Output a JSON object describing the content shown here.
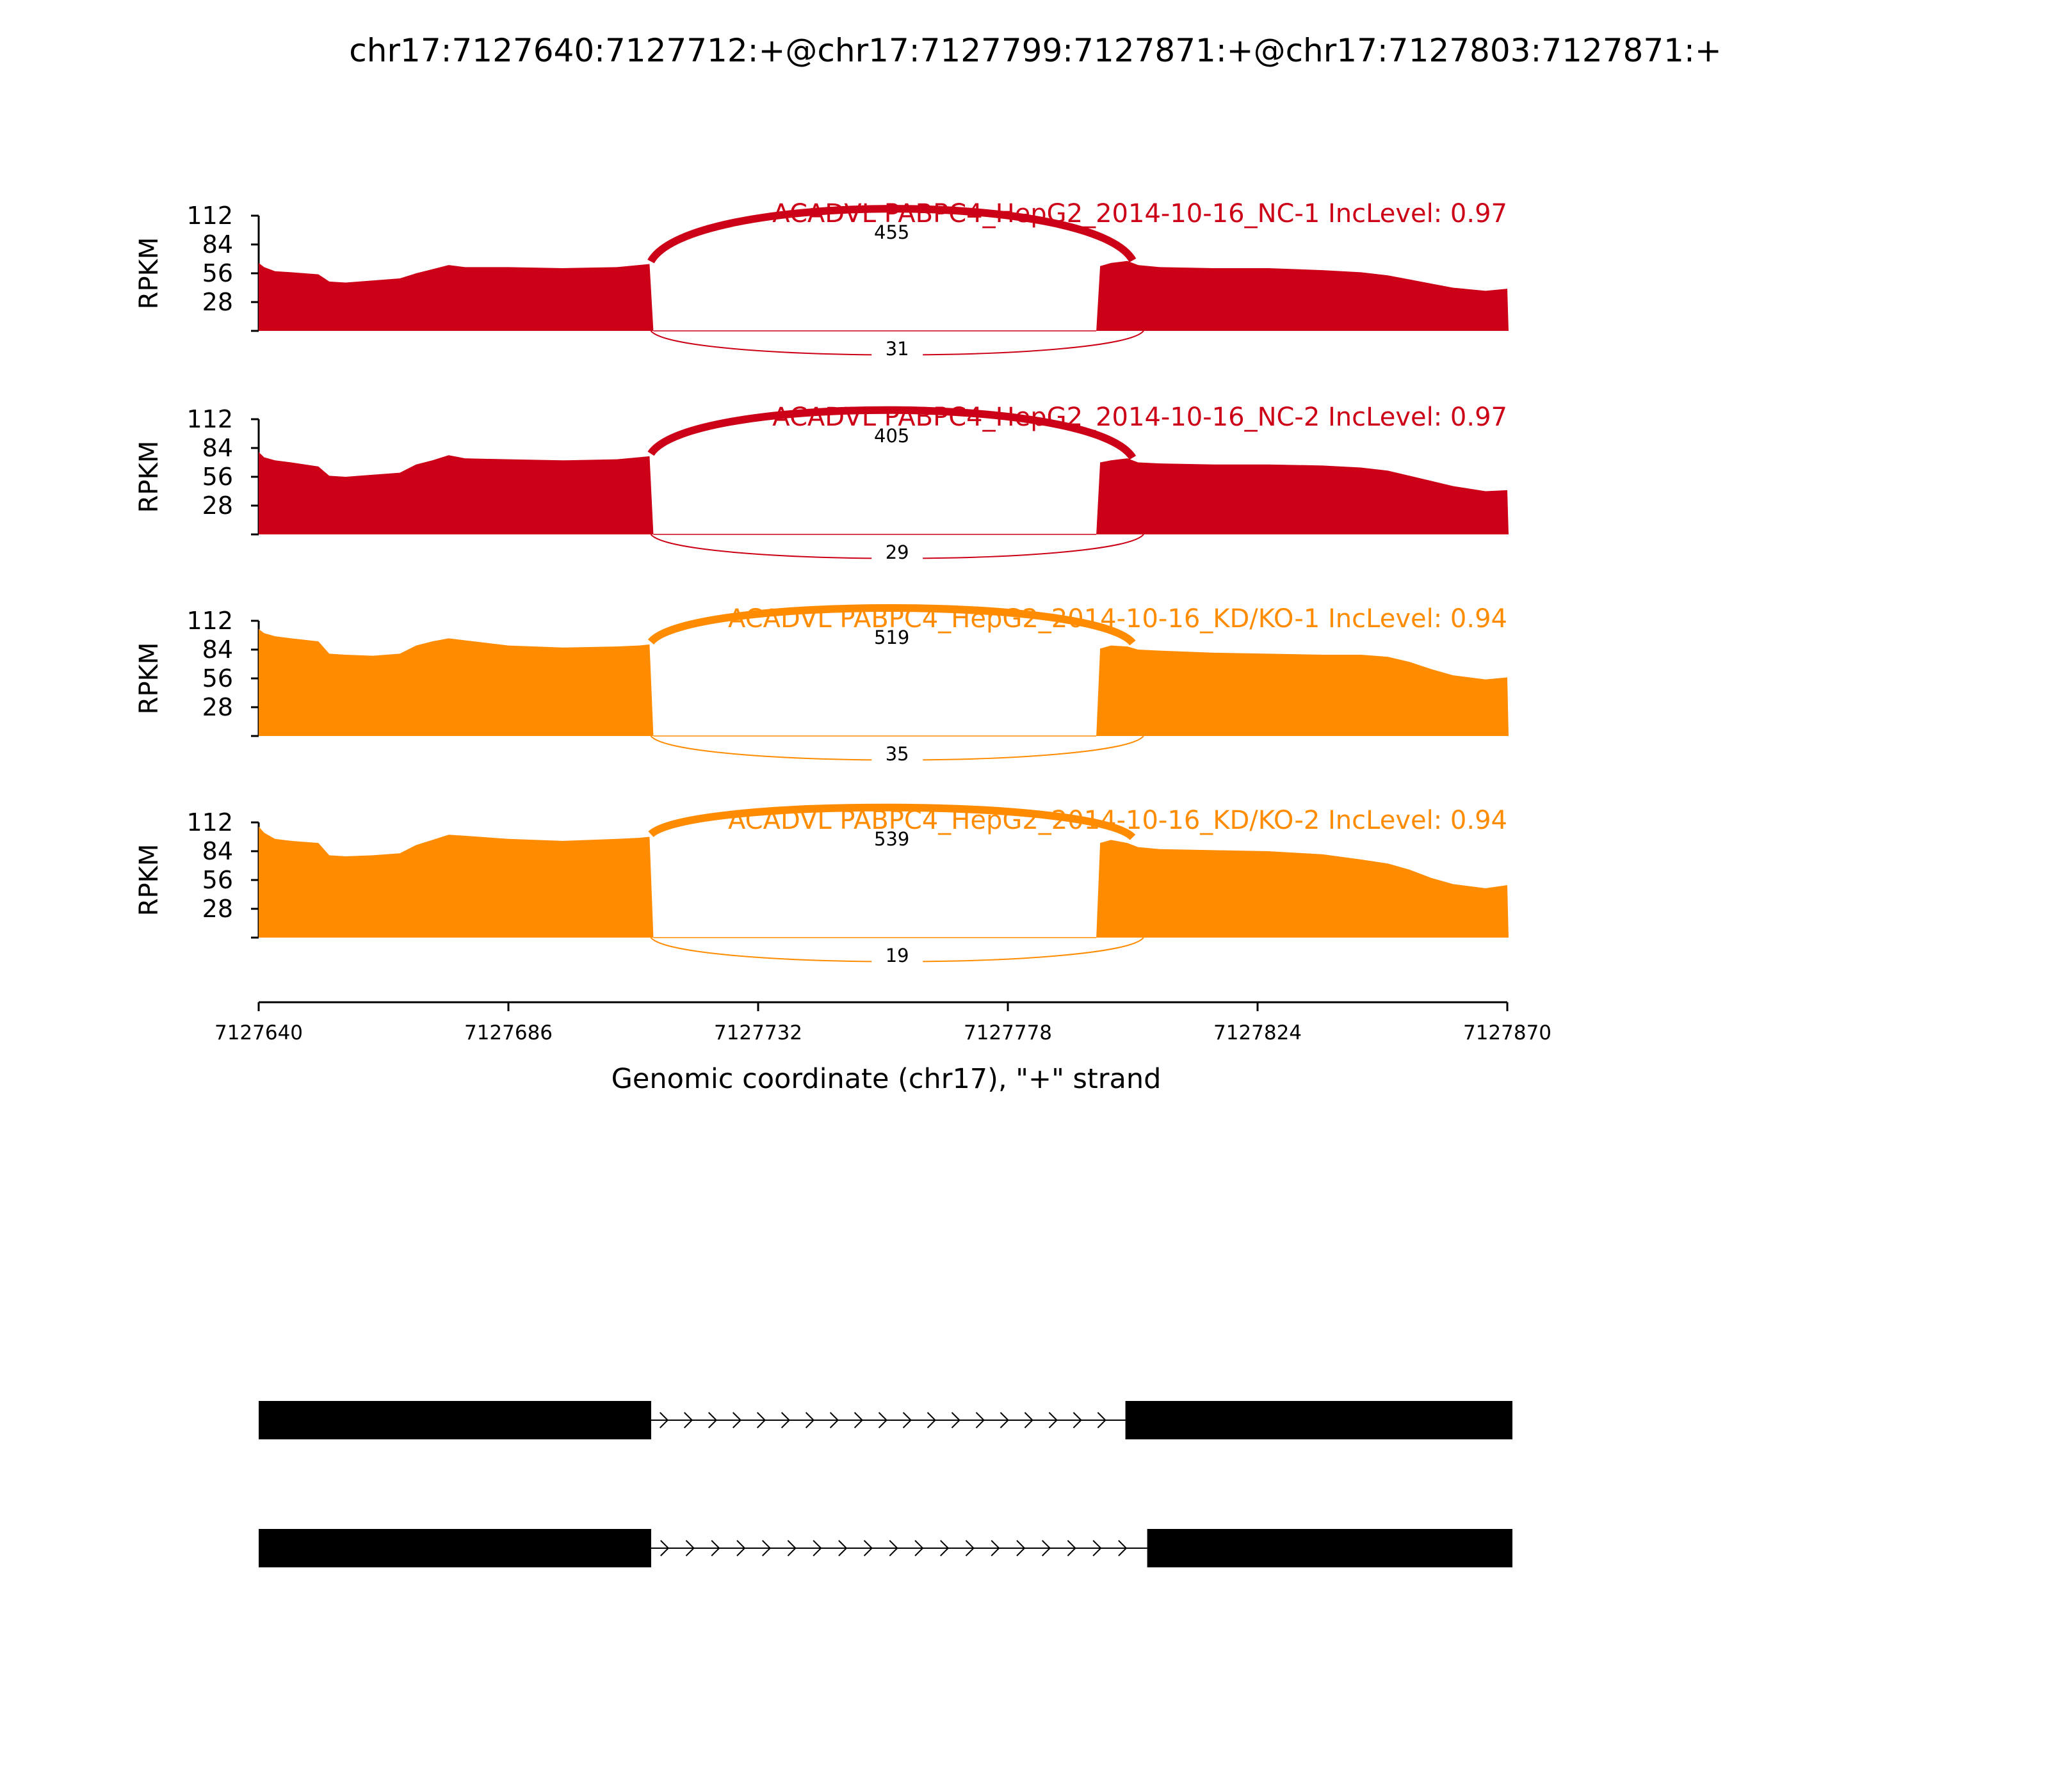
{
  "chart_data": {
    "type": "area",
    "title": "chr17:7127640:7127712:+@chr17:7127799:7127871:+@chr17:7127803:7127871:+",
    "xlabel": "Genomic coordinate (chr17), \"+\" strand",
    "ylabel": "RPKM",
    "xlim": [
      7127640,
      7127870
    ],
    "x_ticks": [
      "7127640",
      "7127686",
      "7127732",
      "7127778",
      "7127824",
      "7127870"
    ],
    "y_ticks": [
      "112",
      "84",
      "56",
      "28"
    ],
    "ylim": [
      0,
      112
    ],
    "exon1_range": [
      7127640,
      7127712
    ],
    "exon2_range": [
      7127795,
      7127870
    ],
    "series": [
      {
        "name": "ACADVL PABPC4_HepG2_2014-10-16_NC-1 IncLevel: 0.97",
        "color": "#cc0016",
        "coverage_x": [
          7127640,
          7127641,
          7127643,
          7127646,
          7127651,
          7127653,
          7127656,
          7127661,
          7127666,
          7127669,
          7127672,
          7127675,
          7127678,
          7127686,
          7127696,
          7127706,
          7127710,
          7127712
        ],
        "coverage_y": [
          66,
          62,
          58,
          57,
          55,
          48,
          47,
          49,
          51,
          56,
          60,
          64,
          62,
          62,
          61,
          62,
          64,
          65
        ],
        "coverage2_x": [
          7127795,
          7127797,
          7127800,
          7127802,
          7127806,
          7127816,
          7127826,
          7127836,
          7127843,
          7127848,
          7127852,
          7127856,
          7127860,
          7127866,
          7127870
        ],
        "coverage2_y": [
          63,
          66,
          68,
          64,
          62,
          61,
          61,
          59,
          57,
          54,
          50,
          46,
          42,
          39,
          41
        ],
        "junctions": [
          {
            "label": "455",
            "reads": 455,
            "side": "above"
          },
          {
            "label": "31",
            "reads": 31,
            "side": "below"
          }
        ]
      },
      {
        "name": "ACADVL PABPC4_HepG2_2014-10-16_NC-2 IncLevel: 0.97",
        "color": "#cc0016",
        "coverage_x": [
          7127640,
          7127641,
          7127643,
          7127646,
          7127651,
          7127653,
          7127656,
          7127661,
          7127666,
          7127669,
          7127672,
          7127675,
          7127678,
          7127686,
          7127696,
          7127706,
          7127710,
          7127712
        ],
        "coverage_y": [
          80,
          75,
          72,
          70,
          66,
          57,
          56,
          58,
          60,
          68,
          72,
          77,
          74,
          73,
          72,
          73,
          75,
          76
        ],
        "coverage2_x": [
          7127795,
          7127797,
          7127800,
          7127802,
          7127806,
          7127816,
          7127826,
          7127836,
          7127843,
          7127848,
          7127852,
          7127856,
          7127860,
          7127866,
          7127870
        ],
        "coverage2_y": [
          70,
          72,
          74,
          70,
          69,
          68,
          68,
          67,
          65,
          62,
          57,
          52,
          47,
          42,
          43
        ],
        "junctions": [
          {
            "label": "405",
            "reads": 405,
            "side": "above"
          },
          {
            "label": "29",
            "reads": 29,
            "side": "below"
          }
        ]
      },
      {
        "name": "ACADVL PABPC4_HepG2_2014-10-16_KD/KO-1 IncLevel: 0.94",
        "color": "#ff8c00",
        "coverage_x": [
          7127640,
          7127641,
          7127643,
          7127646,
          7127651,
          7127653,
          7127656,
          7127661,
          7127666,
          7127669,
          7127672,
          7127675,
          7127678,
          7127686,
          7127696,
          7127706,
          7127710,
          7127712
        ],
        "coverage_y": [
          104,
          100,
          97,
          95,
          92,
          80,
          79,
          78,
          80,
          88,
          92,
          95,
          93,
          88,
          86,
          87,
          88,
          89
        ],
        "coverage2_x": [
          7127795,
          7127797,
          7127800,
          7127802,
          7127806,
          7127816,
          7127826,
          7127836,
          7127843,
          7127848,
          7127852,
          7127856,
          7127860,
          7127866,
          7127870
        ],
        "coverage2_y": [
          85,
          88,
          87,
          84,
          83,
          81,
          80,
          79,
          79,
          77,
          72,
          65,
          59,
          55,
          57
        ],
        "junctions": [
          {
            "label": "519",
            "reads": 519,
            "side": "above"
          },
          {
            "label": "35",
            "reads": 35,
            "side": "below"
          }
        ]
      },
      {
        "name": "ACADVL PABPC4_HepG2_2014-10-16_KD/KO-2 IncLevel: 0.94",
        "color": "#ff8c00",
        "coverage_x": [
          7127640,
          7127641,
          7127643,
          7127646,
          7127651,
          7127653,
          7127656,
          7127661,
          7127666,
          7127669,
          7127672,
          7127675,
          7127678,
          7127686,
          7127696,
          7127706,
          7127710,
          7127712
        ],
        "coverage_y": [
          108,
          102,
          96,
          94,
          92,
          80,
          79,
          80,
          82,
          90,
          95,
          100,
          99,
          96,
          94,
          96,
          97,
          98
        ],
        "coverage2_x": [
          7127795,
          7127797,
          7127800,
          7127802,
          7127806,
          7127816,
          7127826,
          7127836,
          7127843,
          7127848,
          7127852,
          7127856,
          7127860,
          7127866,
          7127870
        ],
        "coverage2_y": [
          92,
          95,
          92,
          88,
          86,
          85,
          84,
          81,
          76,
          72,
          66,
          58,
          52,
          48,
          51
        ],
        "junctions": [
          {
            "label": "539",
            "reads": 539,
            "side": "above"
          },
          {
            "label": "19",
            "reads": 19,
            "side": "below"
          }
        ]
      }
    ],
    "isoforms": [
      {
        "exons": [
          [
            7127640,
            7127712
          ],
          [
            7127799,
            7127871
          ]
        ]
      },
      {
        "exons": [
          [
            7127640,
            7127712
          ],
          [
            7127803,
            7127871
          ]
        ]
      }
    ]
  }
}
